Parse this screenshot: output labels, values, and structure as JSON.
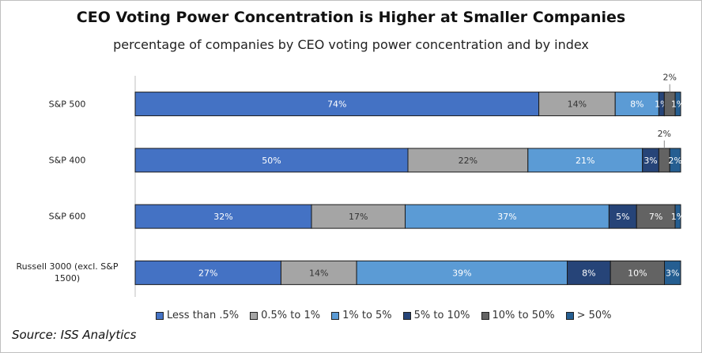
{
  "chart_data": {
    "type": "stacked_bar_horizontal",
    "title": "CEO Voting Power Concentration is Higher at Smaller Companies",
    "subtitle": "percentage of companies by CEO voting power concentration and by index",
    "source": "Source: ISS Analytics",
    "categories": [
      "S&P 500",
      "S&P 400",
      "S&P 600",
      "Russell 3000 (excl. S&P 1500)"
    ],
    "series": [
      {
        "name": "Less than .5%",
        "color": "#4472c4",
        "values": [
          74,
          50,
          32,
          27
        ],
        "value_labels": [
          "74%",
          "50%",
          "32%",
          "27%"
        ]
      },
      {
        "name": "0.5% to 1%",
        "color": "#a5a5a5",
        "values": [
          14,
          22,
          17,
          14
        ],
        "value_labels": [
          "14%",
          "22%",
          "17%",
          "14%"
        ]
      },
      {
        "name": "1% to 5%",
        "color": "#5b9bd5",
        "values": [
          8,
          21,
          37,
          39
        ],
        "value_labels": [
          "8%",
          "21%",
          "37%",
          "39%"
        ]
      },
      {
        "name": "5% to 10%",
        "color": "#264478",
        "values": [
          1,
          3,
          5,
          8
        ],
        "value_labels": [
          "1%",
          "3%",
          "5%",
          "8%"
        ]
      },
      {
        "name": "10% to 50%",
        "color": "#636363",
        "values": [
          2,
          2,
          7,
          10
        ],
        "value_labels": [
          "2%",
          "2%",
          "7%",
          "10%"
        ]
      },
      {
        "name": "> 50%",
        "color": "#255e91",
        "values": [
          1,
          2,
          1,
          3
        ],
        "value_labels": [
          "1%",
          "2%",
          "1%",
          "3%"
        ]
      }
    ],
    "legend": "bottom"
  }
}
